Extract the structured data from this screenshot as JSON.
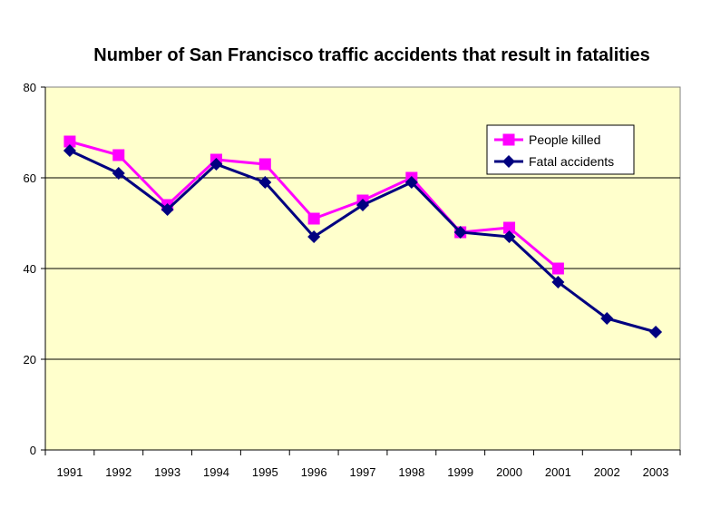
{
  "chart_data": {
    "type": "line",
    "title": "Number of San Francisco traffic accidents that result in fatalities",
    "xlabel": "",
    "ylabel": "",
    "categories": [
      "1991",
      "1992",
      "1993",
      "1994",
      "1995",
      "1996",
      "1997",
      "1998",
      "1999",
      "2000",
      "2001",
      "2002",
      "2003"
    ],
    "ylim": [
      0,
      80
    ],
    "yticks": [
      0,
      20,
      40,
      60,
      80
    ],
    "grid": true,
    "legend_position": "top-right",
    "plot_background": "#FFFFCC",
    "series": [
      {
        "name": "People killed",
        "color": "#FF00FF",
        "marker": "square",
        "values": [
          68,
          65,
          54,
          64,
          63,
          51,
          55,
          60,
          48,
          49,
          40,
          null,
          null
        ]
      },
      {
        "name": "Fatal accidents",
        "color": "#000080",
        "marker": "diamond",
        "values": [
          66,
          61,
          53,
          63,
          59,
          47,
          54,
          59,
          48,
          47,
          37,
          29,
          26
        ]
      }
    ]
  }
}
